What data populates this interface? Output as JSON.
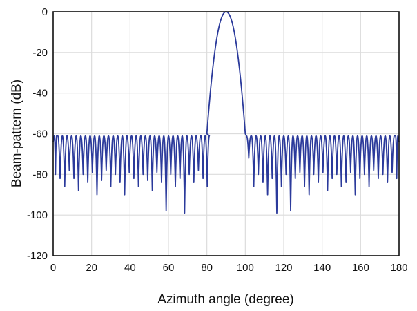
{
  "chart_data": {
    "type": "line",
    "title": "",
    "xlabel": "Azimuth angle (degree)",
    "ylabel": "Beam-pattern (dB)",
    "xlim": [
      0,
      180
    ],
    "ylim": [
      -120,
      0
    ],
    "xticks": [
      0,
      20,
      40,
      60,
      80,
      100,
      120,
      140,
      160,
      180
    ],
    "yticks": [
      0,
      -20,
      -40,
      -60,
      -80,
      -100,
      -120
    ],
    "grid": true,
    "legend": "none",
    "line_color": "#2b3a9b",
    "mainlobe": {
      "peak_angle": 90,
      "peak_db": 0,
      "edge_angles": [
        80,
        100
      ],
      "edge_db": -60
    },
    "sidelobe_level_db": -61,
    "sidelobe_period_deg": 2.4,
    "series": [
      {
        "name": "",
        "null_angles": [
          1.2,
          3.6,
          6.0,
          8.4,
          10.8,
          13.2,
          15.6,
          18.0,
          20.4,
          22.8,
          25.2,
          27.6,
          30.0,
          32.4,
          34.8,
          37.2,
          39.6,
          42.0,
          44.4,
          46.8,
          49.2,
          51.6,
          54.0,
          56.4,
          58.8,
          61.2,
          63.6,
          66.0,
          68.4,
          70.8,
          73.2,
          75.6,
          78.0,
          80.2,
          101.8,
          104.4,
          106.8,
          109.2,
          111.6,
          114.0,
          116.4,
          118.8,
          121.2,
          123.6,
          126.0,
          128.4,
          130.8,
          133.2,
          135.6,
          138.0,
          140.4,
          142.8,
          145.2,
          147.6,
          150.0,
          152.4,
          154.8,
          157.2,
          159.6,
          162.0,
          164.4,
          166.8,
          169.2,
          171.6,
          174.0,
          176.4,
          178.8
        ],
        "null_depths_db": [
          -80,
          -82,
          -86,
          -78,
          -82,
          -88,
          -80,
          -84,
          -79,
          -90,
          -83,
          -78,
          -86,
          -80,
          -84,
          -90,
          -79,
          -82,
          -86,
          -80,
          -83,
          -88,
          -79,
          -84,
          -98,
          -80,
          -86,
          -82,
          -99,
          -80,
          -84,
          -78,
          -82,
          -86,
          -72,
          -86,
          -80,
          -84,
          -90,
          -82,
          -99,
          -86,
          -80,
          -98,
          -82,
          -79,
          -86,
          -90,
          -80,
          -84,
          -79,
          -88,
          -82,
          -80,
          -86,
          -84,
          -79,
          -90,
          -82,
          -80,
          -86,
          -78,
          -82,
          -80,
          -84,
          -79,
          -82
        ]
      }
    ]
  }
}
